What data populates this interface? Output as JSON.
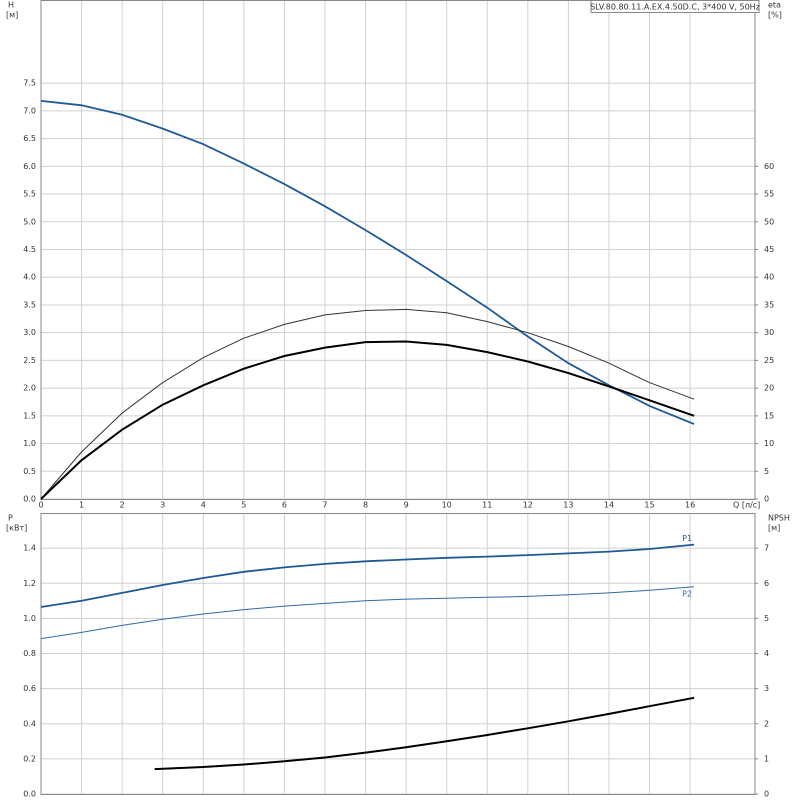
{
  "chart_data": [
    {
      "type": "line",
      "title": "SLV.80.80.11.A.EX.4.50D.C, 3*400 V, 50Hz",
      "ylabel": "H",
      "yunit": "[м]",
      "y2label": "eta",
      "y2unit": "[%]",
      "xlabel": "Q [л/с]",
      "xlim": [
        0,
        17.6
      ],
      "xticks": [
        0,
        1,
        2,
        3,
        4,
        5,
        6,
        7,
        8,
        9,
        10,
        11,
        12,
        13,
        14,
        15,
        16
      ],
      "xtick_labels": true,
      "ylim": [
        0,
        9
      ],
      "yticks": [
        {
          "value": 0,
          "label": "0.0"
        },
        0.5,
        {
          "value": 1,
          "label": "1.0"
        },
        1.5,
        {
          "value": 2,
          "label": "2.0"
        },
        2.5,
        {
          "value": 3,
          "label": "3.0"
        },
        3.5,
        {
          "value": 4,
          "label": "4.0"
        },
        4.5,
        {
          "value": 5,
          "label": "5.0"
        },
        5.5,
        {
          "value": 6,
          "label": "6.0"
        },
        6.5,
        {
          "value": 7,
          "label": "7.0"
        },
        7.5
      ],
      "y2lim": [
        0,
        90
      ],
      "y2ticks": [
        0,
        5,
        10,
        15,
        20,
        25,
        30,
        35,
        40,
        45,
        50,
        55,
        60
      ],
      "grid": true,
      "x": [
        0,
        1,
        2,
        3,
        4,
        5,
        6,
        7,
        8,
        9,
        10,
        11,
        12,
        13,
        14,
        15,
        16.1
      ],
      "series": [
        {
          "color": "#1f5a96",
          "width": 1.8,
          "values": [
            7.18,
            7.1,
            6.93,
            6.68,
            6.4,
            6.05,
            5.68,
            5.28,
            4.85,
            4.4,
            3.93,
            3.45,
            2.93,
            2.45,
            2.05,
            1.68,
            1.35
          ]
        },
        {
          "color": "#333333",
          "width": 1,
          "axis": "y2",
          "values": [
            0,
            8.5,
            15.5,
            21,
            25.5,
            29,
            31.5,
            33.2,
            34,
            34.2,
            33.6,
            32,
            30,
            27.5,
            24.5,
            21,
            18
          ]
        },
        {
          "color": "#000000",
          "width": 2,
          "axis": "y2",
          "values": [
            0,
            7,
            12.5,
            17,
            20.5,
            23.5,
            25.8,
            27.3,
            28.3,
            28.4,
            27.8,
            26.5,
            24.8,
            22.7,
            20.3,
            17.8,
            15
          ]
        }
      ]
    },
    {
      "type": "line",
      "ylabel": "P",
      "yunit": "[кВт]",
      "y2label": "NPSH",
      "y2unit": "[м]",
      "xlim": [
        0,
        17.6
      ],
      "xticks": [
        0,
        1,
        2,
        3,
        4,
        5,
        6,
        7,
        8,
        9,
        10,
        11,
        12,
        13,
        14,
        15,
        16
      ],
      "xtick_labels": false,
      "ylim": [
        0,
        1.6
      ],
      "yticks": [
        {
          "value": 0,
          "label": "0.0"
        },
        0.2,
        0.4,
        0.6,
        0.8,
        {
          "value": 1,
          "label": "1.0"
        },
        1.2,
        1.4
      ],
      "y2lim": [
        0,
        8
      ],
      "y2ticks": [
        0,
        1,
        2,
        3,
        4,
        5,
        6,
        7
      ],
      "grid": true,
      "x": [
        0,
        1,
        2,
        3,
        4,
        5,
        6,
        7,
        8,
        9,
        10,
        11,
        12,
        13,
        14,
        15,
        16.1
      ],
      "series": [
        {
          "name": "P1",
          "color": "#1f5a96",
          "width": 1.8,
          "values": [
            1.065,
            1.1,
            1.145,
            1.19,
            1.23,
            1.265,
            1.29,
            1.31,
            1.325,
            1.335,
            1.345,
            1.352,
            1.36,
            1.37,
            1.38,
            1.395,
            1.42
          ]
        },
        {
          "name": "P2",
          "color": "#2f6aa6",
          "width": 1,
          "values": [
            0.885,
            0.92,
            0.96,
            0.995,
            1.025,
            1.05,
            1.07,
            1.085,
            1.1,
            1.11,
            1.115,
            1.12,
            1.125,
            1.135,
            1.145,
            1.16,
            1.18
          ]
        },
        {
          "color": "#000000",
          "width": 2,
          "axis": "y2",
          "x": [
            2.8,
            4,
            5,
            6,
            7,
            8,
            9,
            10,
            11,
            12,
            13,
            14,
            15,
            16.1
          ],
          "values": [
            0.71,
            0.77,
            0.84,
            0.93,
            1.04,
            1.18,
            1.33,
            1.5,
            1.68,
            1.87,
            2.07,
            2.28,
            2.5,
            2.74
          ]
        }
      ]
    }
  ]
}
